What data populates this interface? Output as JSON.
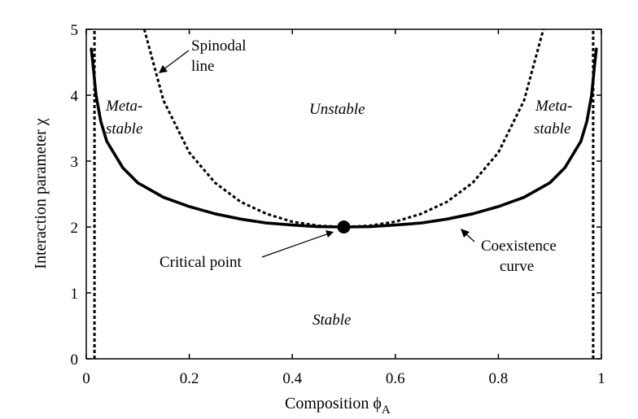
{
  "chart_data": {
    "type": "line",
    "title": "",
    "xlabel": "Composition ϕ",
    "xlabel_subscript": "A",
    "ylabel": "Interaction parameter χ",
    "xlim": [
      0,
      1
    ],
    "ylim": [
      0,
      5
    ],
    "x_ticks": [
      "0",
      "0.2",
      "0.4",
      "0.6",
      "0.8",
      "1"
    ],
    "y_ticks": [
      "0",
      "1",
      "2",
      "3",
      "4",
      "5"
    ],
    "grid": false,
    "legend": "none",
    "series": [
      {
        "id": "coexistence",
        "style": "solid",
        "points": [
          [
            0.0098,
            4.7
          ],
          [
            0.0127,
            4.5
          ],
          [
            0.0189,
            4.0
          ],
          [
            0.0283,
            3.6
          ],
          [
            0.0398,
            3.3
          ],
          [
            0.0707,
            2.9
          ],
          [
            0.1,
            2.67
          ],
          [
            0.15,
            2.45
          ],
          [
            0.2,
            2.31
          ],
          [
            0.25,
            2.2
          ],
          [
            0.3,
            2.12
          ],
          [
            0.35,
            2.06
          ],
          [
            0.4,
            2.03
          ],
          [
            0.45,
            2.005
          ],
          [
            0.5,
            2.0
          ],
          [
            0.55,
            2.005
          ],
          [
            0.6,
            2.03
          ],
          [
            0.65,
            2.06
          ],
          [
            0.7,
            2.12
          ],
          [
            0.75,
            2.2
          ],
          [
            0.8,
            2.31
          ],
          [
            0.85,
            2.45
          ],
          [
            0.9,
            2.67
          ],
          [
            0.9293,
            2.9
          ],
          [
            0.9602,
            3.3
          ],
          [
            0.9717,
            3.6
          ],
          [
            0.9811,
            4.0
          ],
          [
            0.9873,
            4.5
          ],
          [
            0.9902,
            4.7
          ]
        ]
      },
      {
        "id": "spinodal",
        "style": "dashed",
        "points": [
          [
            0.1127,
            5.0
          ],
          [
            0.15,
            3.92
          ],
          [
            0.2,
            3.13
          ],
          [
            0.25,
            2.67
          ],
          [
            0.3,
            2.38
          ],
          [
            0.35,
            2.2
          ],
          [
            0.4,
            2.08
          ],
          [
            0.45,
            2.02
          ],
          [
            0.5,
            2.0
          ],
          [
            0.55,
            2.02
          ],
          [
            0.6,
            2.08
          ],
          [
            0.65,
            2.2
          ],
          [
            0.7,
            2.38
          ],
          [
            0.75,
            2.67
          ],
          [
            0.8,
            3.13
          ],
          [
            0.85,
            3.92
          ],
          [
            0.8873,
            5.0
          ]
        ]
      },
      {
        "id": "left-boundary",
        "style": "dashed",
        "points": [
          [
            0.016,
            0.0
          ],
          [
            0.016,
            5.0
          ]
        ]
      },
      {
        "id": "right-boundary",
        "style": "dashed",
        "points": [
          [
            0.984,
            0.0
          ],
          [
            0.984,
            5.0
          ]
        ]
      }
    ],
    "critical_point": {
      "x": 0.5,
      "y": 2.0
    },
    "annotations": {
      "spinodal_line": [
        "Spinodal",
        "line"
      ],
      "meta_left": [
        "Meta-",
        "stable"
      ],
      "meta_right": [
        "Meta-",
        "stable"
      ],
      "unstable": "Unstable",
      "stable": "Stable",
      "critical_point": "Critical point",
      "coexistence": [
        "Coexistence",
        "curve"
      ]
    }
  }
}
